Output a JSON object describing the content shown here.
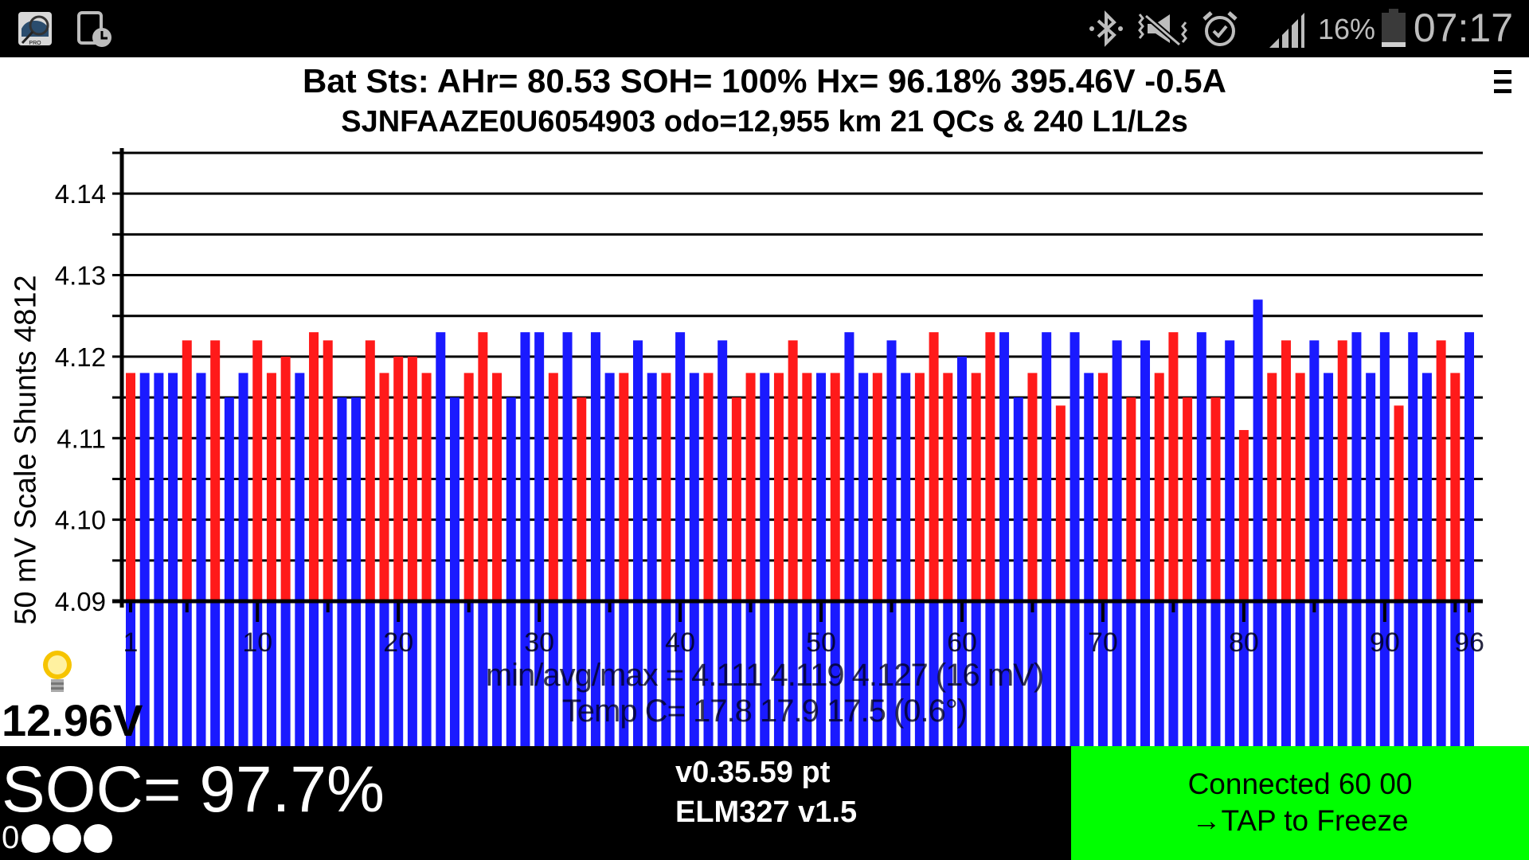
{
  "status_bar": {
    "app_icons": [
      "leafspy-pro-icon",
      "tablet-clock-icon"
    ],
    "system_icons": [
      "bluetooth-icon",
      "mute-vibrate-icon",
      "alarm-icon",
      "signal-icon",
      "battery-icon"
    ],
    "battery_percent": "16%",
    "time": "07:17"
  },
  "header": {
    "line1": "Bat Sts:  AHr= 80.53  SOH= 100%   Hx= 96.18%   395.46V -0.5A",
    "line2": "SJNFAAZE0U6054903 odo=12,955 km  21 QCs  &  240 L1/L2s"
  },
  "chart_data": {
    "type": "bar",
    "ylabel": "50 mV Scale  Shunts 4812",
    "ylim": [
      4.09,
      4.145
    ],
    "yticks": [
      "4.09",
      "4.10",
      "4.11",
      "4.12",
      "4.13",
      "4.14"
    ],
    "xticks": [
      "1",
      "10",
      "20",
      "30",
      "40",
      "50",
      "60",
      "70",
      "80",
      "90",
      "96"
    ],
    "grid": true,
    "colors": {
      "shunt_on": "#ff1a1a",
      "shunt_off": "#1a1aff"
    },
    "cells": [
      1,
      2,
      3,
      4,
      5,
      6,
      7,
      8,
      9,
      10,
      11,
      12,
      13,
      14,
      15,
      16,
      17,
      18,
      19,
      20,
      21,
      22,
      23,
      24,
      25,
      26,
      27,
      28,
      29,
      30,
      31,
      32,
      33,
      34,
      35,
      36,
      37,
      38,
      39,
      40,
      41,
      42,
      43,
      44,
      45,
      46,
      47,
      48,
      49,
      50,
      51,
      52,
      53,
      54,
      55,
      56,
      57,
      58,
      59,
      60,
      61,
      62,
      63,
      64,
      65,
      66,
      67,
      68,
      69,
      70,
      71,
      72,
      73,
      74,
      75,
      76,
      77,
      78,
      79,
      80,
      81,
      82,
      83,
      84,
      85,
      86,
      87,
      88,
      89,
      90,
      91,
      92,
      93,
      94,
      95,
      96
    ],
    "values": [
      4.118,
      4.118,
      4.118,
      4.118,
      4.122,
      4.118,
      4.122,
      4.115,
      4.118,
      4.122,
      4.118,
      4.12,
      4.118,
      4.123,
      4.122,
      4.115,
      4.115,
      4.122,
      4.118,
      4.12,
      4.12,
      4.118,
      4.123,
      4.115,
      4.118,
      4.123,
      4.118,
      4.115,
      4.123,
      4.123,
      4.118,
      4.123,
      4.115,
      4.123,
      4.118,
      4.118,
      4.122,
      4.118,
      4.118,
      4.123,
      4.118,
      4.118,
      4.122,
      4.115,
      4.118,
      4.118,
      4.118,
      4.122,
      4.118,
      4.118,
      4.118,
      4.123,
      4.118,
      4.118,
      4.122,
      4.118,
      4.118,
      4.123,
      4.118,
      4.12,
      4.118,
      4.123,
      4.123,
      4.115,
      4.118,
      4.123,
      4.114,
      4.123,
      4.118,
      4.118,
      4.122,
      4.115,
      4.122,
      4.118,
      4.123,
      4.115,
      4.123,
      4.115,
      4.122,
      4.111,
      4.127,
      4.118,
      4.122,
      4.118,
      4.122,
      4.118,
      4.122,
      4.123,
      4.118,
      4.123,
      4.114,
      4.123,
      4.118,
      4.122,
      4.118,
      4.123
    ],
    "shunt": "rbbbrbrbbrrrbrrbbrrrrrbbrrrbbbrbrbbrbbrbbrbrrbrrrbrbbrbbrrrbrrbbrbrbbrbrbrrrbrbrbrrrbbrbbbrbbrr",
    "summary": "min/avg/max = 4.111 4.119 4.127 (16 mV)",
    "temps": "Temp C= 17.8  17.9  17.5  (0.6°)"
  },
  "aux": {
    "voltage": "12.96V",
    "icon": "lightbulb-icon"
  },
  "footer": {
    "soc": "SOC= 97.7%",
    "gids_prefix": "0",
    "version": "v0.35.59 pt",
    "elm": "ELM327 v1.5",
    "connection": "Connected 60 00",
    "tap": "→TAP to Freeze",
    "connection_color": "#00ff00"
  }
}
